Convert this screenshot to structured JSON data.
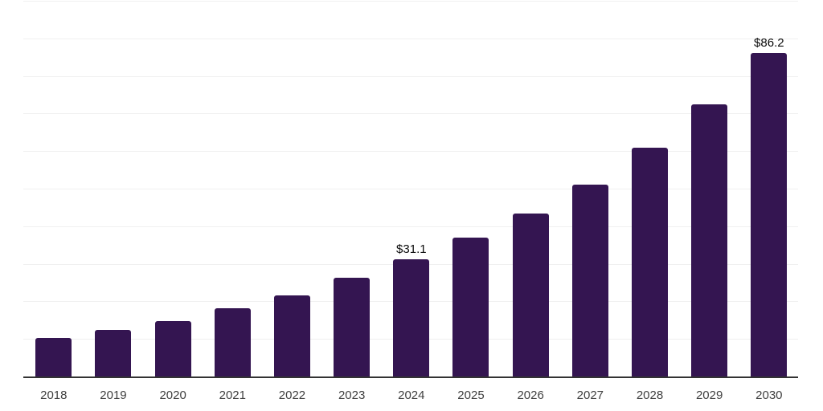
{
  "chart_data": {
    "type": "bar",
    "title": "",
    "xlabel": "",
    "ylabel": "",
    "categories": [
      "2018",
      "2019",
      "2020",
      "2021",
      "2022",
      "2023",
      "2024",
      "2025",
      "2026",
      "2027",
      "2028",
      "2029",
      "2030"
    ],
    "values": [
      10.3,
      12.5,
      14.8,
      18.2,
      21.6,
      26.3,
      31.1,
      36.9,
      43.4,
      51.1,
      61.0,
      72.5,
      86.2
    ],
    "data_labels": [
      {
        "category": "2024",
        "text": "$31.1"
      },
      {
        "category": "2030",
        "text": "$86.2"
      }
    ],
    "ylim": [
      0,
      100
    ],
    "gridline_step": 10,
    "grid": "horizontal",
    "y_tick_labels_visible": false,
    "legend_position": "none"
  },
  "colors": {
    "background": "#ffffff",
    "bar": "#341551",
    "grid": "#f0f0f0",
    "axis": "#333333",
    "tick_label": "#3f3f3f",
    "value_label": "#0a0a0a"
  }
}
